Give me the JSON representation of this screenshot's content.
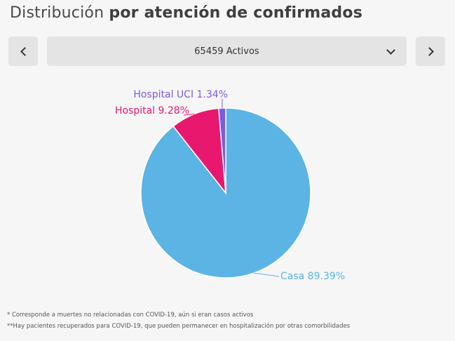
{
  "title": {
    "regular": "Distribución",
    "bold": "por atención de confirmados"
  },
  "selector": {
    "value": "65459 Activos"
  },
  "colors": {
    "casa": "#5bb4e3",
    "hospital": "#e8186f",
    "uci": "#7b5be0"
  },
  "chart_data": {
    "type": "pie",
    "slices": [
      {
        "name": "Casa",
        "label": "Casa 89.39%",
        "value": 89.39,
        "color": "#5bb4e3"
      },
      {
        "name": "Hospital",
        "label": "Hospital 9.28%",
        "value": 9.28,
        "color": "#e8186f"
      },
      {
        "name": "Hospital UCI",
        "label": "Hospital UCI 1.34%",
        "value": 1.34,
        "color": "#7b5be0"
      }
    ]
  },
  "footnotes": [
    "* Corresponde a muertes no relacionadas con COVID-19, aún si eran casos activos",
    "**Hay pacientes recuperados para COVID-19, que pueden permanecer en hospitalización por otras comorbilidades"
  ]
}
